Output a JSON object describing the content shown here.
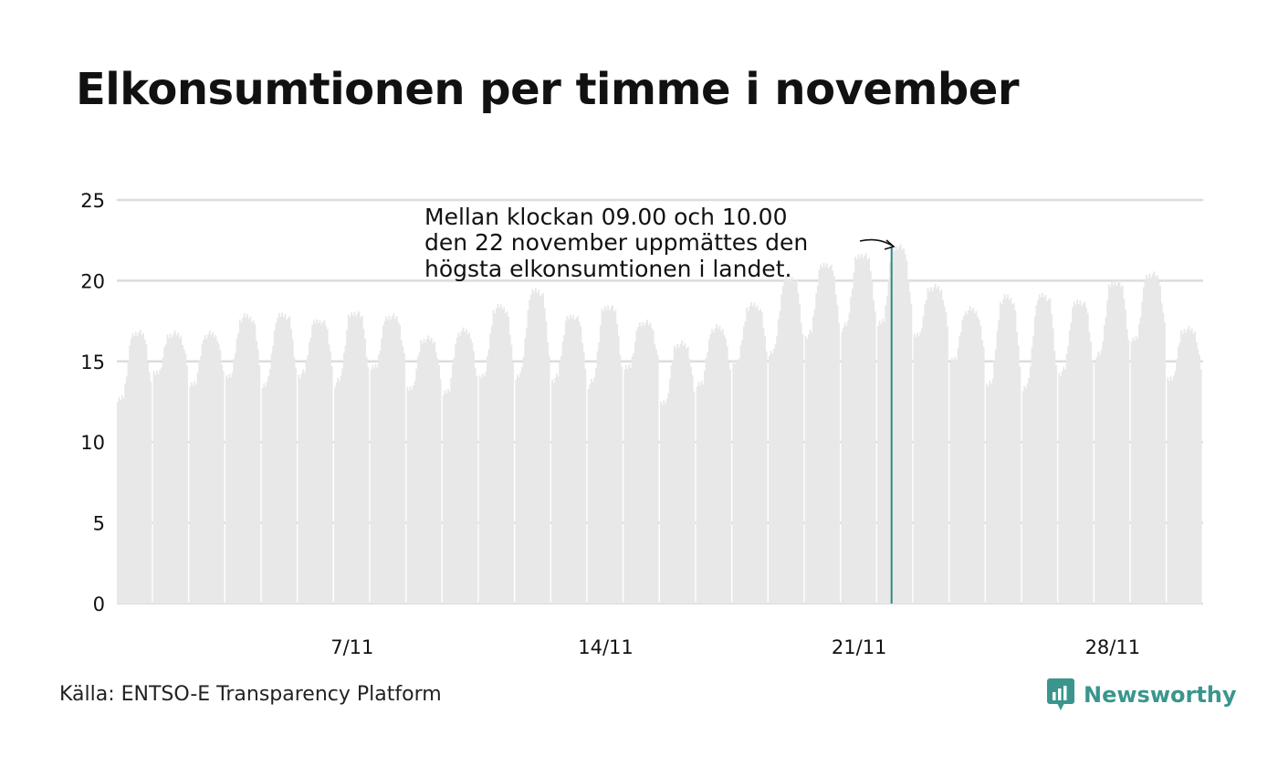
{
  "title": "Elkonsumtionen per timme i november",
  "source": "Källa: ENTSO-E Transparency Platform",
  "brand": {
    "name": "Newsworthy",
    "icon": "newsworthy-logo-icon",
    "color": "#3a968d"
  },
  "colors": {
    "bars": "#e8e8e8",
    "highlight": "#2e8a86",
    "grid": "#dcdcdc",
    "text": "#111111"
  },
  "chart_data": {
    "type": "bar",
    "title": "Elkonsumtionen per timme i november",
    "xlabel": "",
    "ylabel": "",
    "ylim": [
      0,
      25
    ],
    "yticks": [
      "0",
      "5",
      "10",
      "15",
      "20",
      "25"
    ],
    "xticks": [
      {
        "label": "7/11",
        "day": 7
      },
      {
        "label": "14/11",
        "day": 14
      },
      {
        "label": "21/11",
        "day": 21
      },
      {
        "label": "28/11",
        "day": 28
      }
    ],
    "grid": true,
    "resolution": "hourly",
    "period": "1–30 november",
    "series": [
      {
        "daily_values": [
          {
            "day": 1,
            "min": 12.5,
            "max": 16.8
          },
          {
            "day": 2,
            "min": 14.2,
            "max": 16.7
          },
          {
            "day": 3,
            "min": 13.5,
            "max": 16.7
          },
          {
            "day": 4,
            "min": 14.0,
            "max": 17.8
          },
          {
            "day": 5,
            "min": 13.5,
            "max": 17.9
          },
          {
            "day": 6,
            "min": 14.1,
            "max": 17.5
          },
          {
            "day": 7,
            "min": 13.6,
            "max": 18.0
          },
          {
            "day": 8,
            "min": 14.5,
            "max": 17.8
          },
          {
            "day": 9,
            "min": 13.2,
            "max": 16.4
          },
          {
            "day": 10,
            "min": 13.0,
            "max": 16.9
          },
          {
            "day": 11,
            "min": 14.0,
            "max": 18.4
          },
          {
            "day": 12,
            "min": 14.0,
            "max": 19.4
          },
          {
            "day": 13,
            "min": 13.8,
            "max": 17.8
          },
          {
            "day": 14,
            "min": 13.5,
            "max": 18.4
          },
          {
            "day": 15,
            "min": 14.5,
            "max": 17.4
          },
          {
            "day": 16,
            "min": 12.3,
            "max": 16.1
          },
          {
            "day": 17,
            "min": 13.5,
            "max": 17.1
          },
          {
            "day": 18,
            "min": 14.9,
            "max": 18.5
          },
          {
            "day": 19,
            "min": 15.5,
            "max": 20.2
          },
          {
            "day": 20,
            "min": 16.5,
            "max": 21.0
          },
          {
            "day": 21,
            "min": 17.0,
            "max": 21.6
          },
          {
            "day": 22,
            "min": 17.2,
            "max": 22.1
          },
          {
            "day": 23,
            "min": 16.5,
            "max": 19.6
          },
          {
            "day": 24,
            "min": 15.0,
            "max": 18.2
          },
          {
            "day": 25,
            "min": 13.5,
            "max": 19.0
          },
          {
            "day": 26,
            "min": 13.3,
            "max": 19.1
          },
          {
            "day": 27,
            "min": 14.2,
            "max": 18.7
          },
          {
            "day": 28,
            "min": 15.2,
            "max": 19.9
          },
          {
            "day": 29,
            "min": 16.2,
            "max": 20.4
          },
          {
            "day": 30,
            "min": 13.8,
            "max": 17.0
          }
        ]
      }
    ],
    "highlight": {
      "day": 22,
      "hour": "09.00–10.00",
      "value": 22.1,
      "color": "#2e8a86"
    },
    "annotation": [
      "Mellan klockan 09.00 och 10.00",
      "den 22 november uppmättes den",
      "högsta elkonsumtionen i landet."
    ]
  }
}
